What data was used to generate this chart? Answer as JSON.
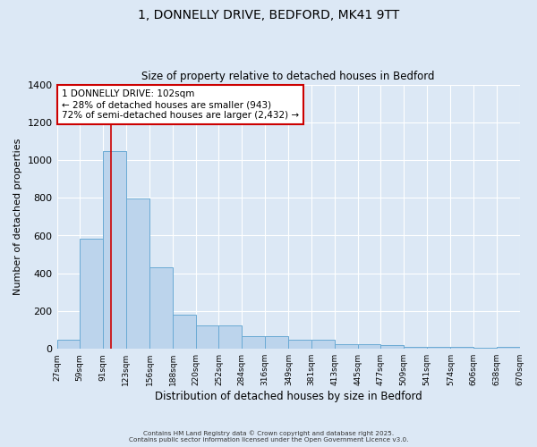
{
  "title_line1": "1, DONNELLY DRIVE, BEDFORD, MK41 9TT",
  "title_line2": "Size of property relative to detached houses in Bedford",
  "xlabel": "Distribution of detached houses by size in Bedford",
  "ylabel": "Number of detached properties",
  "bar_values": [
    47,
    585,
    1047,
    795,
    432,
    180,
    125,
    125,
    65,
    65,
    47,
    47,
    25,
    25,
    18,
    12,
    10,
    10,
    5,
    10
  ],
  "bin_labels": [
    "27sqm",
    "59sqm",
    "91sqm",
    "123sqm",
    "156sqm",
    "188sqm",
    "220sqm",
    "252sqm",
    "284sqm",
    "316sqm",
    "349sqm",
    "381sqm",
    "413sqm",
    "445sqm",
    "477sqm",
    "509sqm",
    "541sqm",
    "574sqm",
    "606sqm",
    "638sqm",
    "670sqm"
  ],
  "bin_edges": [
    27,
    59,
    91,
    123,
    156,
    188,
    220,
    252,
    284,
    316,
    349,
    381,
    413,
    445,
    477,
    509,
    541,
    574,
    606,
    638,
    670
  ],
  "bar_color": "#bcd4ec",
  "bar_edge_color": "#6aaad4",
  "vline_x": 102,
  "vline_color": "#cc0000",
  "annotation_line1": "1 DONNELLY DRIVE: 102sqm",
  "annotation_line2": "← 28% of detached houses are smaller (943)",
  "annotation_line3": "72% of semi-detached houses are larger (2,432) →",
  "annotation_box_color": "#ffffff",
  "annotation_box_edge": "#cc0000",
  "ylim": [
    0,
    1400
  ],
  "yticks": [
    0,
    200,
    400,
    600,
    800,
    1000,
    1200,
    1400
  ],
  "bg_color": "#dce8f5",
  "grid_color": "#ffffff",
  "footer_line1": "Contains HM Land Registry data © Crown copyright and database right 2025.",
  "footer_line2": "Contains public sector information licensed under the Open Government Licence v3.0."
}
